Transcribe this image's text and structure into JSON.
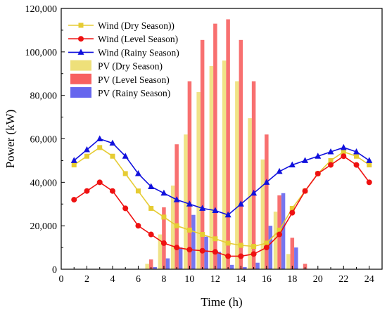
{
  "chart_data": {
    "type": "bar+line",
    "title": "",
    "xlabel": "Time (h)",
    "ylabel": "Power (kW)",
    "xlim": [
      0,
      25
    ],
    "ylim": [
      0,
      120000
    ],
    "xticks": [
      "0",
      "2",
      "4",
      "6",
      "8",
      "10",
      "12",
      "14",
      "16",
      "18",
      "20",
      "22",
      "24"
    ],
    "yticks": [
      "0",
      "20,000",
      "40,000",
      "60,000",
      "80,000",
      "100,000",
      "120,000"
    ],
    "legend_position": "top-left",
    "grid": false,
    "x": [
      1,
      2,
      3,
      4,
      5,
      6,
      7,
      8,
      9,
      10,
      11,
      12,
      13,
      14,
      15,
      16,
      17,
      18,
      19,
      20,
      21,
      22,
      23,
      24
    ],
    "line_series": [
      {
        "name": "Wind (Dry Season))",
        "color": "#e6cc33",
        "marker": "square",
        "values": [
          48000,
          52000,
          56000,
          52000,
          44000,
          36000,
          28000,
          24000,
          20000,
          18000,
          16000,
          14000,
          12000,
          11000,
          10500,
          12000,
          18000,
          28000,
          36000,
          44000,
          50000,
          54000,
          52000,
          48000
        ]
      },
      {
        "name": "Wind (Level Season)",
        "color": "#ee1111",
        "marker": "circle",
        "values": [
          32000,
          36000,
          40000,
          36000,
          28000,
          20000,
          16000,
          12000,
          10000,
          9000,
          8500,
          8000,
          6000,
          6000,
          7000,
          10000,
          16000,
          26000,
          36000,
          44000,
          48000,
          52000,
          48000,
          40000
        ]
      },
      {
        "name": "Wind (Rainy Season)",
        "color": "#1111dd",
        "marker": "triangle",
        "values": [
          50000,
          55000,
          60000,
          58000,
          52000,
          44000,
          38000,
          35000,
          32000,
          30000,
          28000,
          27000,
          25000,
          30000,
          35000,
          40000,
          45000,
          48000,
          50000,
          52000,
          54000,
          56000,
          54000,
          50000
        ]
      }
    ],
    "bar_series": [
      {
        "name": "PV (Dry Season)",
        "color": "#eee07a",
        "values": [
          0,
          0,
          0,
          0,
          0,
          0,
          2500,
          16000,
          38500,
          62000,
          81500,
          93500,
          96000,
          86500,
          69500,
          50500,
          26500,
          7000,
          0,
          0,
          0,
          0,
          0,
          0
        ]
      },
      {
        "name": "PV (Level Season)",
        "color": "#f76060",
        "values": [
          0,
          0,
          0,
          0,
          0,
          0,
          4500,
          28500,
          57500,
          86500,
          105500,
          113000,
          115000,
          105500,
          86500,
          62000,
          34000,
          14500,
          2500,
          0,
          0,
          0,
          0,
          0
        ]
      },
      {
        "name": "PV (Rainy Season)",
        "color": "#6666ee",
        "values": [
          0,
          0,
          0,
          0,
          0,
          0,
          1000,
          5000,
          10000,
          25000,
          15000,
          8000,
          2000,
          1000,
          3000,
          20000,
          35000,
          10000,
          0,
          0,
          0,
          0,
          0,
          0
        ]
      }
    ]
  }
}
